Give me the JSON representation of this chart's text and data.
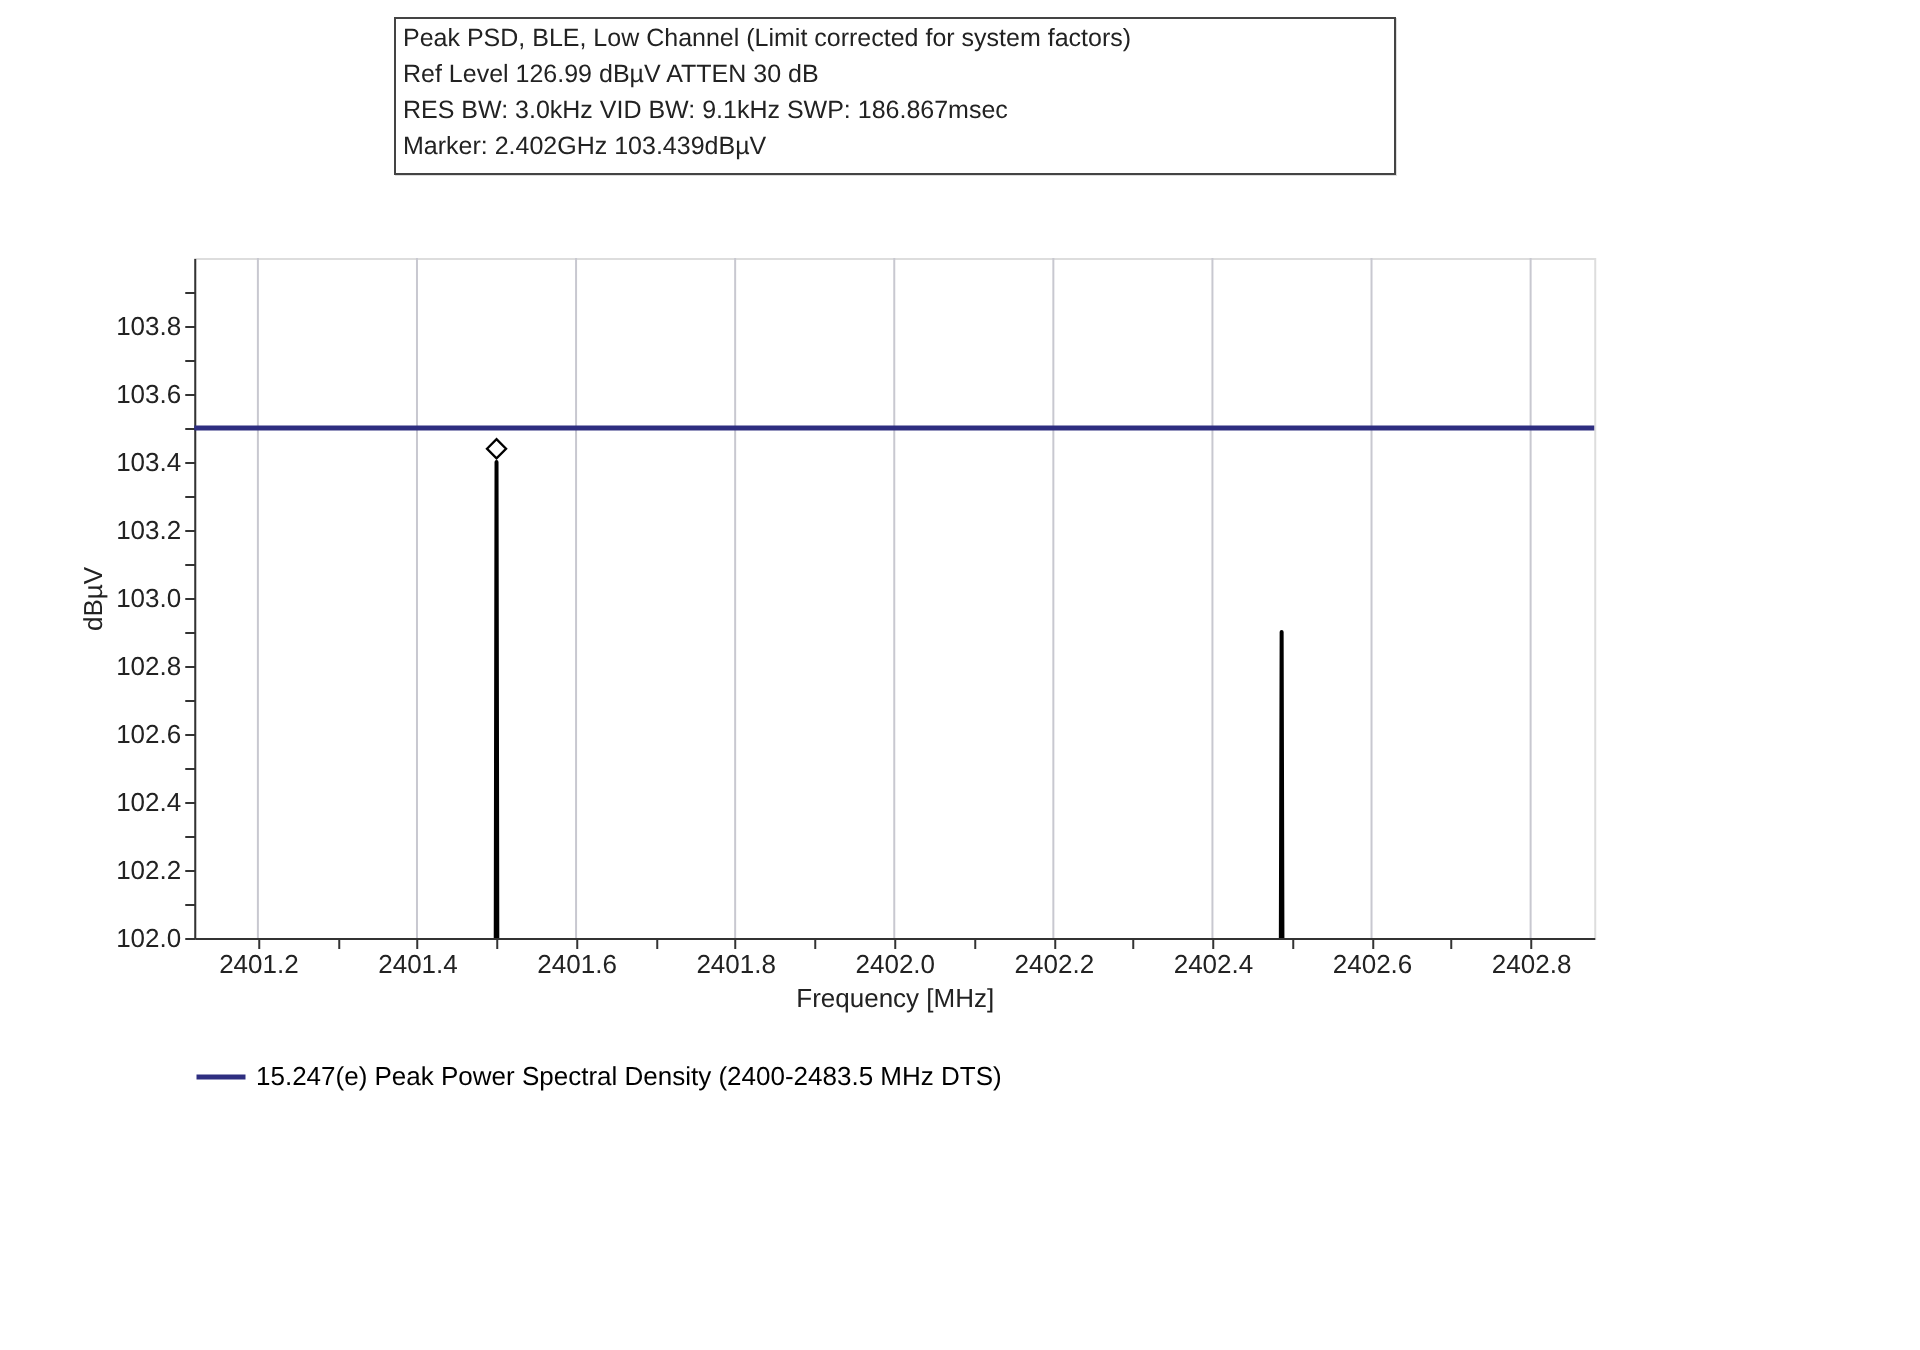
{
  "chart_data": {
    "type": "line",
    "title": "Peak PSD, BLE, Low Channel (Limit corrected for system factors)",
    "annotations": [
      "Ref Level 126.99 dBµV    ATTEN 30 dB",
      "RES BW: 3.0kHz  VID BW: 9.1kHz  SWP: 186.867msec",
      "Marker: 2.402GHz  103.439dBµV"
    ],
    "xlabel": "Frequency [MHz]",
    "ylabel": "dBµV",
    "xlim": [
      2401.12,
      2402.88
    ],
    "ylim": [
      102.0,
      104.0
    ],
    "xticks": [
      {
        "value": 2401.2,
        "label": "2401.2"
      },
      {
        "value": 2401.3,
        "label": null
      },
      {
        "value": 2401.4,
        "label": "2401.4"
      },
      {
        "value": 2401.5,
        "label": null
      },
      {
        "value": 2401.6,
        "label": "2401.6"
      },
      {
        "value": 2401.7,
        "label": null
      },
      {
        "value": 2401.8,
        "label": "2401.8"
      },
      {
        "value": 2401.9,
        "label": null
      },
      {
        "value": 2402.0,
        "label": "2402.0"
      },
      {
        "value": 2402.1,
        "label": null
      },
      {
        "value": 2402.2,
        "label": "2402.2"
      },
      {
        "value": 2402.3,
        "label": null
      },
      {
        "value": 2402.4,
        "label": "2402.4"
      },
      {
        "value": 2402.5,
        "label": null
      },
      {
        "value": 2402.6,
        "label": "2402.6"
      },
      {
        "value": 2402.7,
        "label": null
      },
      {
        "value": 2402.8,
        "label": "2402.8"
      }
    ],
    "yticks": [
      {
        "value": 102.0,
        "label": "102.0"
      },
      {
        "value": 102.1,
        "label": null
      },
      {
        "value": 102.2,
        "label": "102.2"
      },
      {
        "value": 102.3,
        "label": null
      },
      {
        "value": 102.4,
        "label": "102.4"
      },
      {
        "value": 102.5,
        "label": null
      },
      {
        "value": 102.6,
        "label": "102.6"
      },
      {
        "value": 102.7,
        "label": null
      },
      {
        "value": 102.8,
        "label": "102.8"
      },
      {
        "value": 102.9,
        "label": null
      },
      {
        "value": 103.0,
        "label": "103.0"
      },
      {
        "value": 103.1,
        "label": null
      },
      {
        "value": 103.2,
        "label": "103.2"
      },
      {
        "value": 103.3,
        "label": null
      },
      {
        "value": 103.4,
        "label": "103.4"
      },
      {
        "value": 103.5,
        "label": null
      },
      {
        "value": 103.6,
        "label": "103.6"
      },
      {
        "value": 103.7,
        "label": null
      },
      {
        "value": 103.8,
        "label": "103.8"
      },
      {
        "value": 103.9,
        "label": null
      }
    ],
    "grid": "x",
    "legend": "bottom",
    "series": [
      {
        "color": "#000000",
        "x": [
          2401.499,
          2401.5,
          2401.501,
          2402.0,
          2402.486,
          2402.487,
          2402.488
        ],
        "values": [
          102.0,
          103.4,
          102.0,
          null,
          102.0,
          102.9,
          102.0
        ]
      },
      {
        "name": "15.247(e) Peak Power Spectral Density (2400-2483.5 MHz DTS)",
        "color": "#2e2e80",
        "x": [
          2401.12,
          2402.88
        ],
        "values": [
          103.5,
          103.5
        ]
      },
      {
        "type": "scatter",
        "marker": "diamond",
        "color": "#000000",
        "x": [
          2401.5
        ],
        "values": [
          103.439
        ]
      }
    ]
  }
}
